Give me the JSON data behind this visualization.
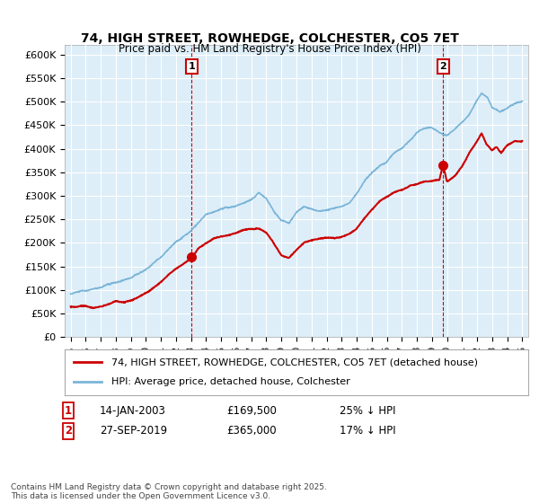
{
  "title": "74, HIGH STREET, ROWHEDGE, COLCHESTER, CO5 7ET",
  "subtitle": "Price paid vs. HM Land Registry's House Price Index (HPI)",
  "legend_line1": "74, HIGH STREET, ROWHEDGE, COLCHESTER, CO5 7ET (detached house)",
  "legend_line2": "HPI: Average price, detached house, Colchester",
  "annotation1_label": "1",
  "annotation1_date": "14-JAN-2003",
  "annotation1_price": "£169,500",
  "annotation1_note": "25% ↓ HPI",
  "annotation2_label": "2",
  "annotation2_date": "27-SEP-2019",
  "annotation2_price": "£365,000",
  "annotation2_note": "17% ↓ HPI",
  "footer": "Contains HM Land Registry data © Crown copyright and database right 2025.\nThis data is licensed under the Open Government Licence v3.0.",
  "hpi_color": "#7ab4d8",
  "hpi_fill_color": "#ddeef8",
  "price_color": "#cc0000",
  "annotation_color": "#cc0000",
  "ylim_min": 0,
  "ylim_max": 620000,
  "yticks": [
    0,
    50000,
    100000,
    150000,
    200000,
    250000,
    300000,
    350000,
    400000,
    450000,
    500000,
    550000,
    600000
  ],
  "ytick_labels": [
    "£0",
    "£50K",
    "£100K",
    "£150K",
    "£200K",
    "£250K",
    "£300K",
    "£350K",
    "£400K",
    "£450K",
    "£500K",
    "£550K",
    "£600K"
  ],
  "xmin_year": 1995,
  "xmax_year": 2025,
  "xticks": [
    1995,
    1996,
    1997,
    1998,
    1999,
    2000,
    2001,
    2002,
    2003,
    2004,
    2005,
    2006,
    2007,
    2008,
    2009,
    2010,
    2011,
    2012,
    2013,
    2014,
    2015,
    2016,
    2017,
    2018,
    2019,
    2020,
    2021,
    2022,
    2023,
    2024,
    2025
  ],
  "sale1_x": 2003.04,
  "sale1_y": 169500,
  "sale2_x": 2019.74,
  "sale2_y": 365000,
  "vline1_x": 2003.04,
  "vline2_x": 2019.74,
  "bg_color": "#f0f4f8"
}
